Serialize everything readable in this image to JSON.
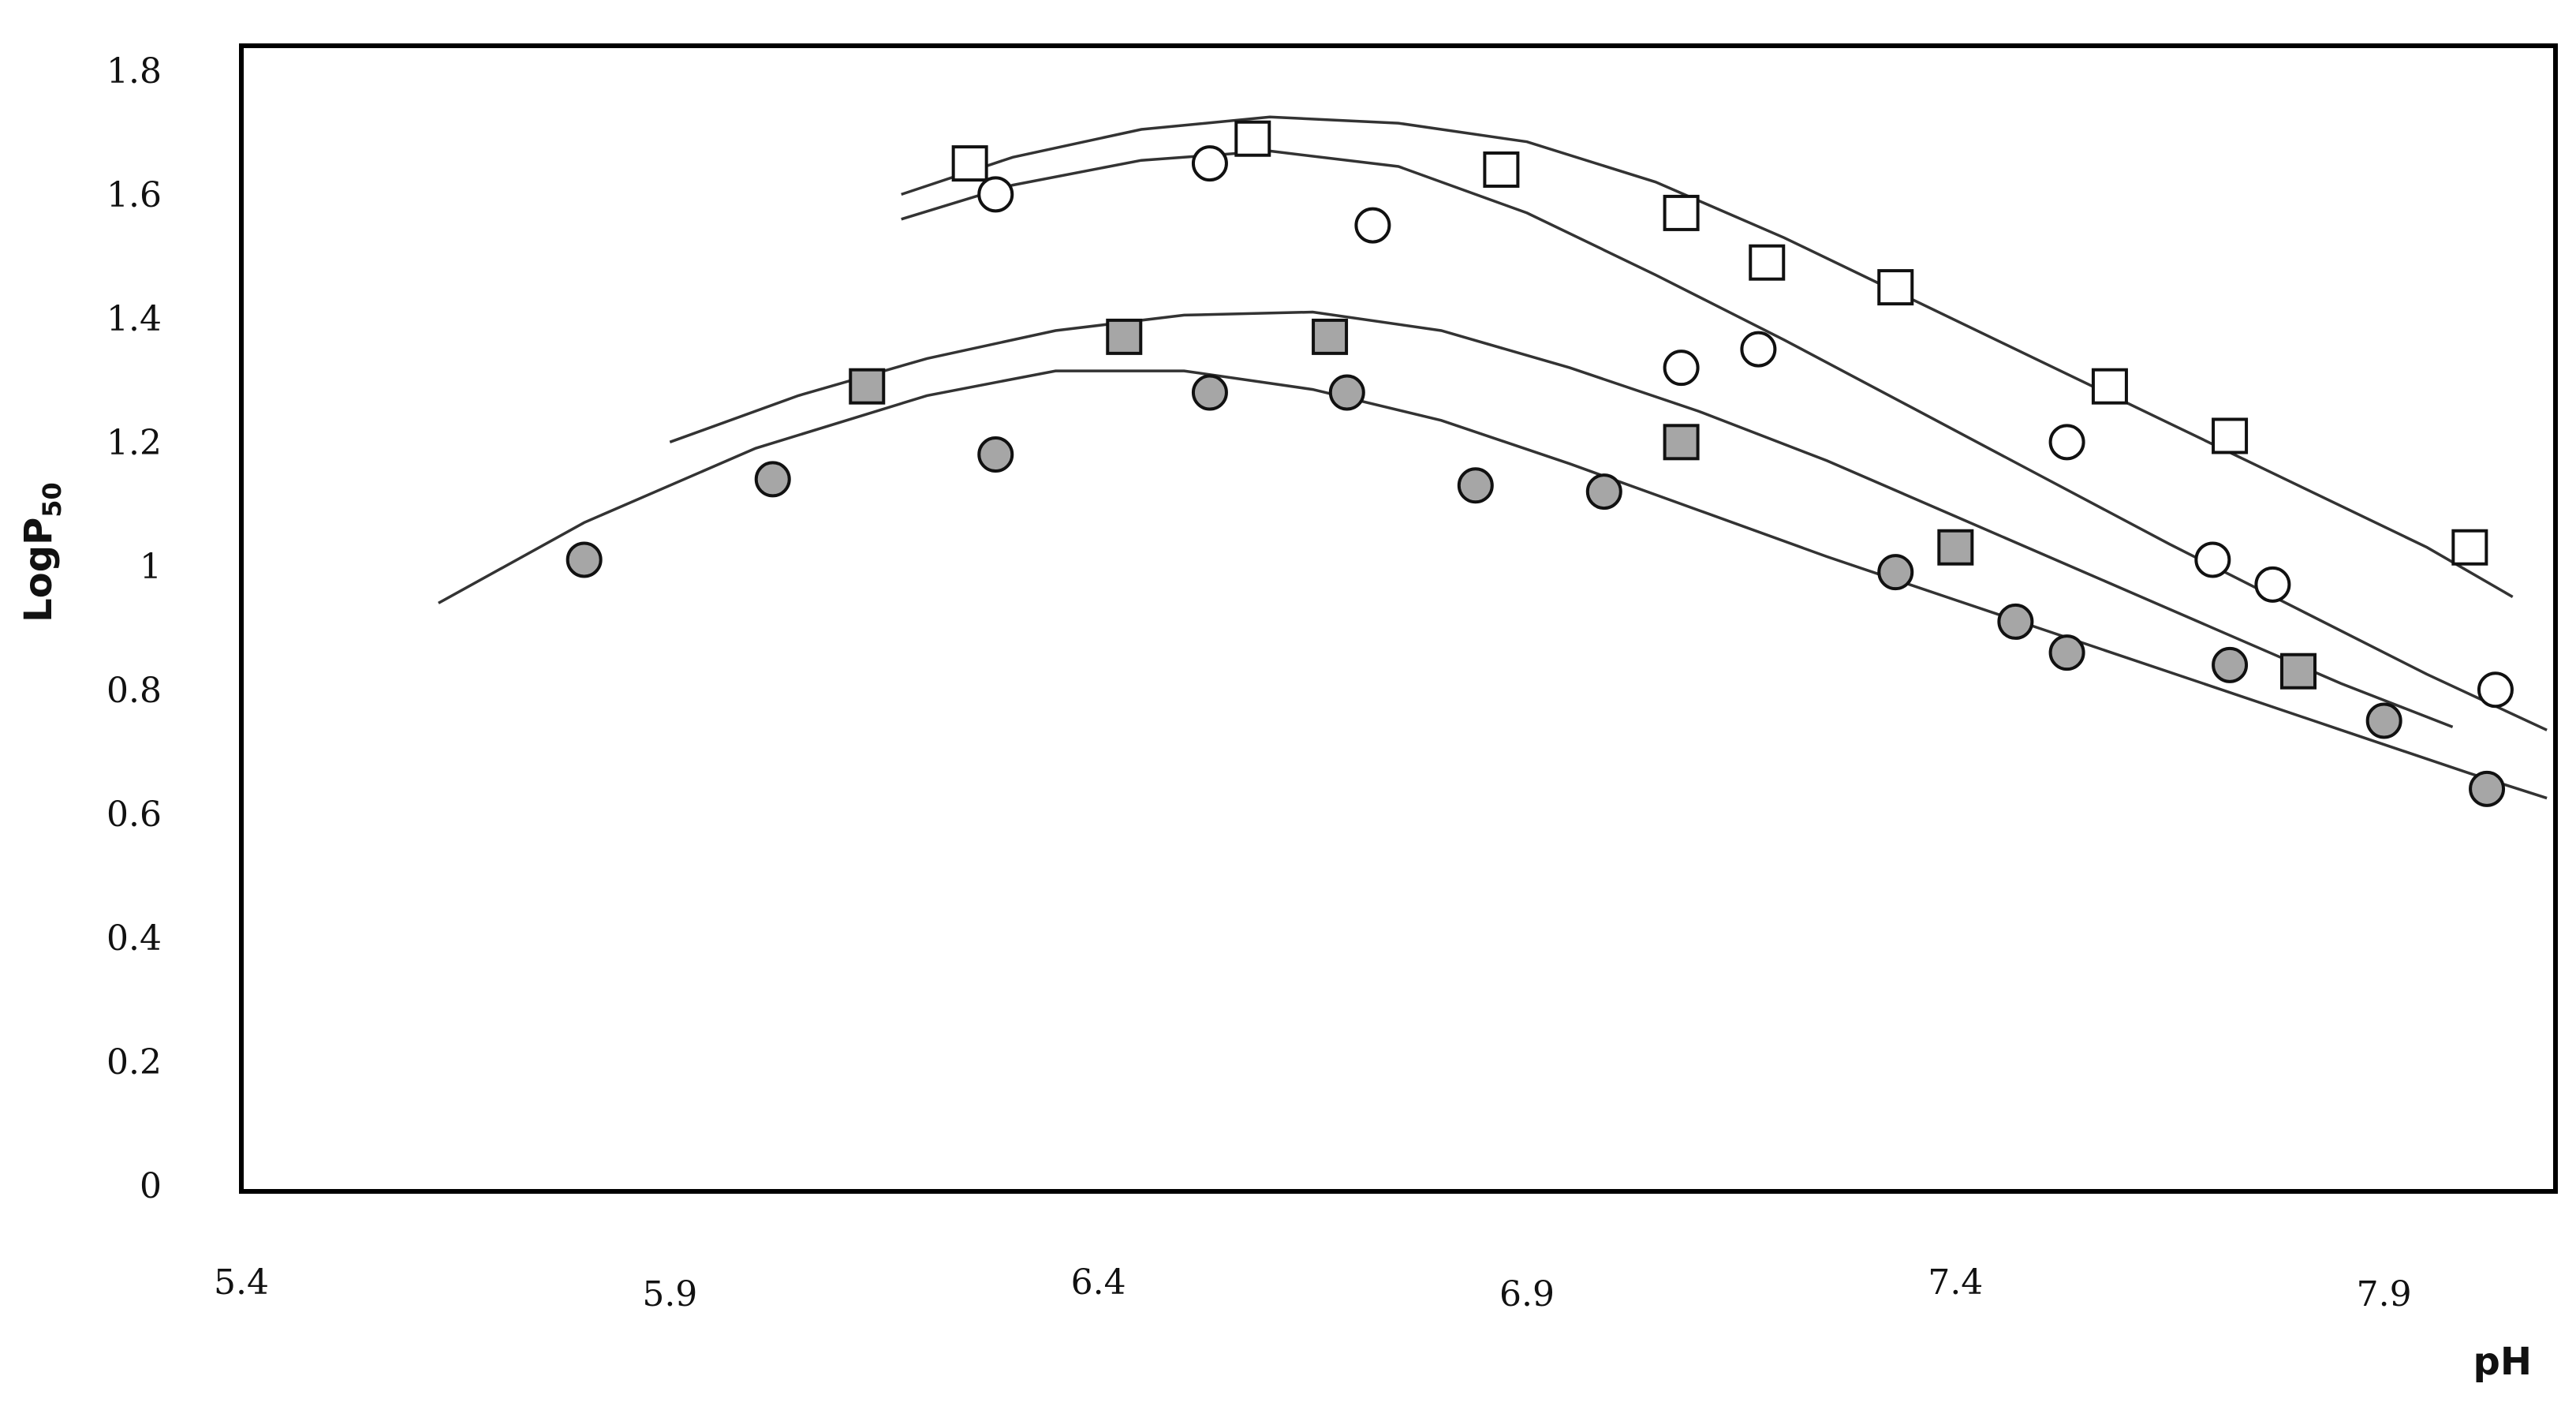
{
  "chart_data": {
    "type": "scatter",
    "xlabel": "pH",
    "ylabel": "LogP",
    "ylabel_subscript": "50",
    "xlim": [
      5.4,
      8.1
    ],
    "ylim": [
      0,
      1.85
    ],
    "grid": false,
    "x_ticks": [
      "5.4",
      "5.9",
      "6.4",
      "6.9",
      "7.4",
      "7.9"
    ],
    "y_ticks": [
      "0",
      "0.2",
      "0.4",
      "0.6",
      "0.8",
      "1",
      "1.2",
      "1.4",
      "1.6",
      "1.8"
    ],
    "series": [
      {
        "marker": "square",
        "fill": "#ffffff",
        "points": [
          [
            6.25,
            1.66
          ],
          [
            6.58,
            1.7
          ],
          [
            6.87,
            1.65
          ],
          [
            7.08,
            1.58
          ],
          [
            7.18,
            1.5
          ],
          [
            7.33,
            1.46
          ],
          [
            7.58,
            1.3
          ],
          [
            7.72,
            1.22
          ],
          [
            8.0,
            1.04
          ]
        ],
        "fit": [
          [
            6.17,
            1.61
          ],
          [
            6.3,
            1.67
          ],
          [
            6.45,
            1.715
          ],
          [
            6.6,
            1.735
          ],
          [
            6.75,
            1.725
          ],
          [
            6.9,
            1.695
          ],
          [
            7.05,
            1.63
          ],
          [
            7.2,
            1.54
          ],
          [
            7.35,
            1.44
          ],
          [
            7.5,
            1.34
          ],
          [
            7.65,
            1.24
          ],
          [
            7.8,
            1.14
          ],
          [
            7.95,
            1.04
          ],
          [
            8.05,
            0.96
          ]
        ]
      },
      {
        "marker": "circle",
        "fill": "#ffffff",
        "points": [
          [
            6.28,
            1.61
          ],
          [
            6.53,
            1.66
          ],
          [
            6.72,
            1.56
          ],
          [
            7.08,
            1.33
          ],
          [
            7.17,
            1.36
          ],
          [
            7.53,
            1.21
          ],
          [
            7.7,
            1.02
          ],
          [
            7.77,
            0.98
          ],
          [
            8.03,
            0.81
          ]
        ],
        "fit": [
          [
            6.17,
            1.57
          ],
          [
            6.3,
            1.625
          ],
          [
            6.45,
            1.665
          ],
          [
            6.6,
            1.68
          ],
          [
            6.75,
            1.655
          ],
          [
            6.9,
            1.58
          ],
          [
            7.05,
            1.48
          ],
          [
            7.2,
            1.375
          ],
          [
            7.35,
            1.265
          ],
          [
            7.5,
            1.155
          ],
          [
            7.65,
            1.045
          ],
          [
            7.8,
            0.94
          ],
          [
            7.95,
            0.835
          ],
          [
            8.09,
            0.745
          ]
        ]
      },
      {
        "marker": "square",
        "fill": "#a6a6a6",
        "points": [
          [
            6.13,
            1.3
          ],
          [
            6.43,
            1.38
          ],
          [
            6.67,
            1.38
          ],
          [
            7.08,
            1.21
          ],
          [
            7.4,
            1.04
          ],
          [
            7.8,
            0.84
          ]
        ],
        "fit": [
          [
            5.9,
            1.21
          ],
          [
            6.05,
            1.285
          ],
          [
            6.2,
            1.345
          ],
          [
            6.35,
            1.39
          ],
          [
            6.5,
            1.415
          ],
          [
            6.65,
            1.42
          ],
          [
            6.8,
            1.39
          ],
          [
            6.95,
            1.33
          ],
          [
            7.1,
            1.26
          ],
          [
            7.25,
            1.18
          ],
          [
            7.4,
            1.09
          ],
          [
            7.55,
            1.0
          ],
          [
            7.7,
            0.91
          ],
          [
            7.85,
            0.82
          ],
          [
            7.98,
            0.75
          ]
        ]
      },
      {
        "marker": "circle",
        "fill": "#a6a6a6",
        "points": [
          [
            5.8,
            1.02
          ],
          [
            6.02,
            1.15
          ],
          [
            6.28,
            1.19
          ],
          [
            6.53,
            1.29
          ],
          [
            6.69,
            1.29
          ],
          [
            6.84,
            1.14
          ],
          [
            6.99,
            1.13
          ],
          [
            7.33,
            1.0
          ],
          [
            7.47,
            0.92
          ],
          [
            7.53,
            0.87
          ],
          [
            7.72,
            0.85
          ],
          [
            7.9,
            0.76
          ],
          [
            8.02,
            0.65
          ]
        ],
        "fit": [
          [
            5.63,
            0.95
          ],
          [
            5.8,
            1.08
          ],
          [
            6.0,
            1.2
          ],
          [
            6.2,
            1.285
          ],
          [
            6.35,
            1.325
          ],
          [
            6.5,
            1.325
          ],
          [
            6.65,
            1.295
          ],
          [
            6.8,
            1.245
          ],
          [
            6.95,
            1.175
          ],
          [
            7.1,
            1.1
          ],
          [
            7.25,
            1.025
          ],
          [
            7.4,
            0.955
          ],
          [
            7.55,
            0.885
          ],
          [
            7.7,
            0.815
          ],
          [
            7.85,
            0.745
          ],
          [
            8.0,
            0.675
          ],
          [
            8.09,
            0.635
          ]
        ]
      }
    ]
  }
}
